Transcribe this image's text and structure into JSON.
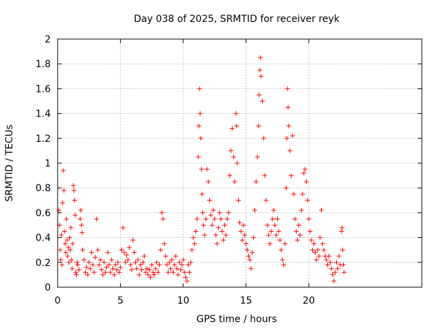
{
  "chart_data": {
    "type": "scatter",
    "title": "Day 038 of 2025, SRMTID for receiver reyk",
    "xlabel": "GPS time / hours",
    "ylabel": "SRMTID / TECUs",
    "xlim": [
      0,
      29
    ],
    "ylim": [
      0,
      2
    ],
    "xticks": [
      0,
      5,
      10,
      15,
      20
    ],
    "xtick_labels": [
      "0",
      "5",
      "10",
      "15",
      "20"
    ],
    "yticks": [
      0,
      0.2,
      0.4,
      0.6,
      0.8,
      1,
      1.2,
      1.4,
      1.6,
      1.8,
      2
    ],
    "ytick_labels": [
      "0",
      "0.2",
      "0.4",
      "0.6",
      "0.8",
      "1",
      "1.2",
      "1.4",
      "1.6",
      "1.8",
      "2"
    ],
    "grid": true,
    "marker": "+",
    "color": "#ff0000",
    "series": [
      {
        "name": "reyk",
        "points": [
          [
            0.1,
            0.62
          ],
          [
            0.15,
            0.5
          ],
          [
            0.2,
            0.3
          ],
          [
            0.25,
            0.22
          ],
          [
            0.3,
            0.42
          ],
          [
            0.35,
            0.18
          ],
          [
            0.4,
            0.68
          ],
          [
            0.45,
            0.94
          ],
          [
            0.5,
            0.78
          ],
          [
            0.55,
            0.45
          ],
          [
            0.6,
            0.35
          ],
          [
            0.65,
            0.28
          ],
          [
            0.7,
            0.55
          ],
          [
            0.75,
            0.38
          ],
          [
            0.8,
            0.25
          ],
          [
            0.85,
            0.32
          ],
          [
            0.9,
            0.2
          ],
          [
            0.95,
            0.4
          ],
          [
            1.0,
            0.3
          ],
          [
            1.05,
            0.48
          ],
          [
            1.1,
            0.22
          ],
          [
            1.15,
            0.15
          ],
          [
            1.2,
            0.35
          ],
          [
            1.25,
            0.82
          ],
          [
            1.3,
            0.78
          ],
          [
            1.35,
            0.7
          ],
          [
            1.4,
            0.58
          ],
          [
            1.45,
            0.12
          ],
          [
            1.5,
            0.1
          ],
          [
            1.55,
            0.2
          ],
          [
            1.6,
            0.18
          ],
          [
            1.7,
            0.14
          ],
          [
            1.8,
            0.55
          ],
          [
            1.85,
            0.62
          ],
          [
            1.9,
            0.5
          ],
          [
            1.95,
            0.44
          ],
          [
            2.0,
            0.3
          ],
          [
            2.1,
            0.22
          ],
          [
            2.2,
            0.12
          ],
          [
            2.3,
            0.16
          ],
          [
            2.4,
            0.1
          ],
          [
            2.5,
            0.2
          ],
          [
            2.6,
            0.15
          ],
          [
            2.7,
            0.28
          ],
          [
            2.8,
            0.18
          ],
          [
            2.9,
            0.12
          ],
          [
            3.0,
            0.24
          ],
          [
            3.1,
            0.55
          ],
          [
            3.2,
            0.3
          ],
          [
            3.3,
            0.18
          ],
          [
            3.4,
            0.22
          ],
          [
            3.5,
            0.14
          ],
          [
            3.6,
            0.1
          ],
          [
            3.7,
            0.2
          ],
          [
            3.8,
            0.12
          ],
          [
            3.9,
            0.16
          ],
          [
            4.0,
            0.28
          ],
          [
            4.1,
            0.18
          ],
          [
            4.2,
            0.12
          ],
          [
            4.3,
            0.22
          ],
          [
            4.4,
            0.15
          ],
          [
            4.5,
            0.1
          ],
          [
            4.6,
            0.18
          ],
          [
            4.7,
            0.14
          ],
          [
            4.8,
            0.2
          ],
          [
            4.9,
            0.12
          ],
          [
            5.0,
            0.16
          ],
          [
            5.1,
            0.3
          ],
          [
            5.2,
            0.48
          ],
          [
            5.3,
            0.28
          ],
          [
            5.4,
            0.2
          ],
          [
            5.5,
            0.26
          ],
          [
            5.6,
            0.22
          ],
          [
            5.7,
            0.32
          ],
          [
            5.8,
            0.18
          ],
          [
            5.9,
            0.14
          ],
          [
            6.0,
            0.38
          ],
          [
            6.1,
            0.28
          ],
          [
            6.2,
            0.2
          ],
          [
            6.3,
            0.15
          ],
          [
            6.4,
            0.22
          ],
          [
            6.5,
            0.1
          ],
          [
            6.6,
            0.18
          ],
          [
            6.7,
            0.14
          ],
          [
            6.8,
            0.2
          ],
          [
            6.9,
            0.25
          ],
          [
            7.0,
            0.12
          ],
          [
            7.1,
            0.15
          ],
          [
            7.2,
            0.1
          ],
          [
            7.3,
            0.14
          ],
          [
            7.4,
            0.08
          ],
          [
            7.5,
            0.18
          ],
          [
            7.6,
            0.12
          ],
          [
            7.7,
            0.1
          ],
          [
            7.8,
            0.15
          ],
          [
            7.9,
            0.2
          ],
          [
            8.0,
            0.12
          ],
          [
            8.1,
            0.18
          ],
          [
            8.2,
            0.3
          ],
          [
            8.3,
            0.6
          ],
          [
            8.4,
            0.55
          ],
          [
            8.5,
            0.35
          ],
          [
            8.6,
            0.25
          ],
          [
            8.7,
            0.18
          ],
          [
            8.8,
            0.12
          ],
          [
            8.9,
            0.2
          ],
          [
            9.0,
            0.15
          ],
          [
            9.1,
            0.22
          ],
          [
            9.2,
            0.12
          ],
          [
            9.3,
            0.18
          ],
          [
            9.4,
            0.25
          ],
          [
            9.5,
            0.15
          ],
          [
            9.6,
            0.1
          ],
          [
            9.7,
            0.2
          ],
          [
            9.8,
            0.14
          ],
          [
            9.9,
            0.18
          ],
          [
            10.0,
            0.22
          ],
          [
            10.1,
            0.12
          ],
          [
            10.2,
            0.08
          ],
          [
            10.3,
            0.05
          ],
          [
            10.4,
            0.18
          ],
          [
            10.5,
            0.12
          ],
          [
            10.6,
            0.2
          ],
          [
            10.7,
            0.3
          ],
          [
            10.8,
            0.4
          ],
          [
            10.9,
            0.35
          ],
          [
            11.0,
            0.45
          ],
          [
            11.1,
            0.55
          ],
          [
            11.2,
            1.05
          ],
          [
            11.25,
            1.3
          ],
          [
            11.3,
            1.6
          ],
          [
            11.35,
            1.4
          ],
          [
            11.4,
            1.2
          ],
          [
            11.45,
            0.95
          ],
          [
            11.5,
            0.75
          ],
          [
            11.55,
            0.6
          ],
          [
            11.6,
            0.5
          ],
          [
            11.7,
            0.42
          ],
          [
            11.8,
            0.55
          ],
          [
            11.9,
            0.95
          ],
          [
            12.0,
            0.85
          ],
          [
            12.1,
            0.7
          ],
          [
            12.2,
            0.58
          ],
          [
            12.3,
            0.5
          ],
          [
            12.4,
            0.62
          ],
          [
            12.5,
            0.55
          ],
          [
            12.6,
            0.42
          ],
          [
            12.7,
            0.35
          ],
          [
            12.8,
            0.48
          ],
          [
            12.9,
            0.6
          ],
          [
            13.0,
            0.55
          ],
          [
            13.1,
            0.45
          ],
          [
            13.2,
            0.38
          ],
          [
            13.3,
            0.5
          ],
          [
            13.4,
            0.42
          ],
          [
            13.5,
            0.55
          ],
          [
            13.6,
            0.6
          ],
          [
            13.7,
            0.9
          ],
          [
            13.8,
            1.1
          ],
          [
            13.9,
            1.28
          ],
          [
            14.0,
            1.05
          ],
          [
            14.1,
            0.85
          ],
          [
            14.2,
            1.4
          ],
          [
            14.25,
            1.3
          ],
          [
            14.3,
            1.0
          ],
          [
            14.4,
            0.7
          ],
          [
            14.5,
            0.52
          ],
          [
            14.6,
            0.45
          ],
          [
            14.7,
            0.38
          ],
          [
            14.8,
            0.5
          ],
          [
            14.9,
            0.42
          ],
          [
            15.0,
            0.35
          ],
          [
            15.1,
            0.3
          ],
          [
            15.2,
            0.25
          ],
          [
            15.3,
            0.22
          ],
          [
            15.4,
            0.15
          ],
          [
            15.5,
            0.28
          ],
          [
            15.6,
            0.4
          ],
          [
            15.7,
            0.62
          ],
          [
            15.8,
            0.85
          ],
          [
            15.9,
            1.05
          ],
          [
            16.0,
            1.3
          ],
          [
            16.05,
            1.55
          ],
          [
            16.1,
            1.75
          ],
          [
            16.15,
            1.85
          ],
          [
            16.2,
            1.7
          ],
          [
            16.3,
            1.5
          ],
          [
            16.4,
            1.2
          ],
          [
            16.5,
            0.9
          ],
          [
            16.6,
            0.7
          ],
          [
            16.7,
            0.5
          ],
          [
            16.8,
            0.42
          ],
          [
            16.9,
            0.35
          ],
          [
            17.0,
            0.45
          ],
          [
            17.1,
            0.55
          ],
          [
            17.2,
            0.62
          ],
          [
            17.3,
            0.5
          ],
          [
            17.4,
            0.42
          ],
          [
            17.5,
            0.55
          ],
          [
            17.6,
            0.45
          ],
          [
            17.7,
            0.38
          ],
          [
            17.8,
            0.3
          ],
          [
            17.9,
            0.22
          ],
          [
            18.0,
            0.18
          ],
          [
            18.1,
            0.35
          ],
          [
            18.2,
            0.8
          ],
          [
            18.25,
            1.2
          ],
          [
            18.3,
            1.6
          ],
          [
            18.35,
            1.45
          ],
          [
            18.4,
            1.3
          ],
          [
            18.5,
            1.1
          ],
          [
            18.6,
            0.9
          ],
          [
            18.7,
            1.22
          ],
          [
            18.8,
            0.75
          ],
          [
            18.9,
            0.55
          ],
          [
            19.0,
            0.45
          ],
          [
            19.1,
            0.38
          ],
          [
            19.2,
            0.5
          ],
          [
            19.3,
            0.42
          ],
          [
            19.4,
            0.62
          ],
          [
            19.5,
            0.75
          ],
          [
            19.6,
            0.92
          ],
          [
            19.7,
            0.95
          ],
          [
            19.8,
            0.85
          ],
          [
            19.9,
            0.7
          ],
          [
            20.0,
            0.55
          ],
          [
            20.1,
            0.45
          ],
          [
            20.2,
            0.38
          ],
          [
            20.3,
            0.3
          ],
          [
            20.4,
            0.35
          ],
          [
            20.5,
            0.28
          ],
          [
            20.6,
            0.22
          ],
          [
            20.7,
            0.3
          ],
          [
            20.8,
            0.25
          ],
          [
            20.9,
            0.4
          ],
          [
            21.0,
            0.62
          ],
          [
            21.1,
            0.35
          ],
          [
            21.2,
            0.3
          ],
          [
            21.3,
            0.25
          ],
          [
            21.4,
            0.22
          ],
          [
            21.5,
            0.18
          ],
          [
            21.6,
            0.25
          ],
          [
            21.7,
            0.2
          ],
          [
            21.8,
            0.15
          ],
          [
            21.9,
            0.1
          ],
          [
            22.0,
            0.05
          ],
          [
            22.1,
            0.12
          ],
          [
            22.2,
            0.2
          ],
          [
            22.3,
            0.15
          ],
          [
            22.4,
            0.25
          ],
          [
            22.5,
            0.18
          ],
          [
            22.6,
            0.45
          ],
          [
            22.65,
            0.48
          ],
          [
            22.7,
            0.3
          ],
          [
            22.75,
            0.18
          ],
          [
            22.8,
            0.12
          ]
        ]
      }
    ]
  }
}
